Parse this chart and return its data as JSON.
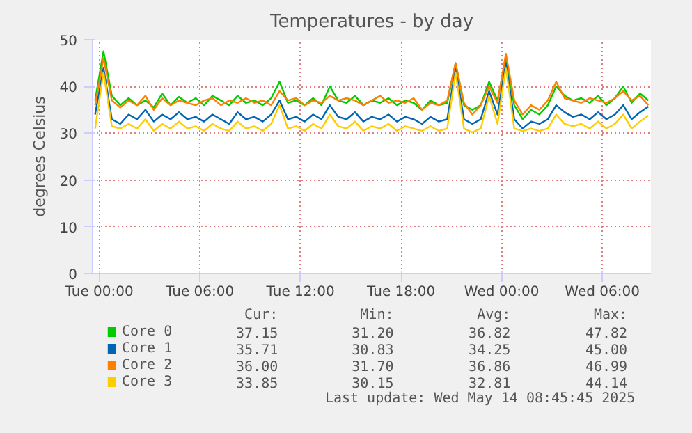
{
  "chart_data": {
    "type": "line",
    "title": "Temperatures - by day",
    "ylabel": "degrees Celsius",
    "x": [
      "2025-05-12T23:45",
      "2025-05-13T00:15",
      "2025-05-13T00:45",
      "2025-05-13T01:15",
      "2025-05-13T01:45",
      "2025-05-13T02:15",
      "2025-05-13T02:45",
      "2025-05-13T03:15",
      "2025-05-13T03:45",
      "2025-05-13T04:15",
      "2025-05-13T04:45",
      "2025-05-13T05:15",
      "2025-05-13T05:45",
      "2025-05-13T06:15",
      "2025-05-13T06:45",
      "2025-05-13T07:15",
      "2025-05-13T07:45",
      "2025-05-13T08:15",
      "2025-05-13T08:45",
      "2025-05-13T09:15",
      "2025-05-13T09:45",
      "2025-05-13T10:15",
      "2025-05-13T10:45",
      "2025-05-13T11:15",
      "2025-05-13T11:45",
      "2025-05-13T12:15",
      "2025-05-13T12:45",
      "2025-05-13T13:15",
      "2025-05-13T13:45",
      "2025-05-13T14:15",
      "2025-05-13T14:45",
      "2025-05-13T15:15",
      "2025-05-13T15:45",
      "2025-05-13T16:15",
      "2025-05-13T16:45",
      "2025-05-13T17:15",
      "2025-05-13T17:45",
      "2025-05-13T18:15",
      "2025-05-13T18:45",
      "2025-05-13T19:15",
      "2025-05-13T19:45",
      "2025-05-13T20:15",
      "2025-05-13T20:45",
      "2025-05-13T21:15",
      "2025-05-13T21:45",
      "2025-05-13T22:15",
      "2025-05-13T22:45",
      "2025-05-13T23:15",
      "2025-05-13T23:45",
      "2025-05-14T00:15",
      "2025-05-14T00:45",
      "2025-05-14T01:15",
      "2025-05-14T01:45",
      "2025-05-14T02:15",
      "2025-05-14T02:45",
      "2025-05-14T03:15",
      "2025-05-14T03:45",
      "2025-05-14T04:15",
      "2025-05-14T04:45",
      "2025-05-14T05:15",
      "2025-05-14T05:45",
      "2025-05-14T06:15",
      "2025-05-14T06:45",
      "2025-05-14T07:15",
      "2025-05-14T07:45",
      "2025-05-14T08:15",
      "2025-05-14T08:45"
    ],
    "series": [
      {
        "name": "Core 0",
        "color": "#00cc00",
        "values": [
          37,
          47.5,
          38,
          36,
          37.5,
          36,
          37,
          35.5,
          38.5,
          36,
          37.8,
          36.5,
          37.5,
          36,
          38,
          37,
          36,
          38,
          36.5,
          37,
          36,
          37.5,
          41,
          36.5,
          37,
          36,
          37.5,
          36,
          40,
          37,
          36.5,
          38,
          36,
          37,
          36.5,
          37.5,
          36,
          37,
          36.5,
          35,
          37,
          36,
          36.5,
          45,
          36,
          35,
          36,
          41,
          37,
          46,
          36,
          33,
          35,
          34,
          36,
          40,
          38,
          37,
          37.5,
          36.5,
          38,
          36,
          37.5,
          40,
          36.5,
          38.5,
          37
        ]
      },
      {
        "name": "Core 1",
        "color": "#0066b3",
        "values": [
          34,
          44,
          33,
          32,
          34,
          33,
          35,
          32.5,
          34,
          33,
          34.5,
          33,
          33.5,
          32.5,
          34,
          33,
          32,
          34.5,
          33,
          33.5,
          32.5,
          34,
          37,
          33,
          33.5,
          32.5,
          34,
          33,
          36,
          33.5,
          33,
          34.5,
          32.5,
          33.5,
          33,
          34,
          32.5,
          33.5,
          33,
          32,
          33.5,
          32.5,
          33,
          44,
          33,
          32,
          33,
          39,
          34,
          45,
          33,
          31,
          32.5,
          32,
          33,
          36,
          34.5,
          33.5,
          34,
          33,
          34.5,
          33,
          34,
          36,
          33,
          34.5,
          35.7
        ]
      },
      {
        "name": "Core 2",
        "color": "#ff8000",
        "values": [
          36,
          46,
          37,
          35.5,
          37,
          36,
          38,
          35,
          37.5,
          36,
          37,
          36.5,
          36,
          37,
          37.5,
          36,
          37,
          36.5,
          37.5,
          36.5,
          37,
          36,
          39,
          37,
          37.5,
          36,
          37,
          36.5,
          38,
          37,
          37.5,
          37,
          36,
          37,
          38,
          36.5,
          37,
          36.5,
          37.5,
          35,
          36.5,
          36,
          37,
          45,
          36.5,
          34,
          36,
          40,
          36.5,
          47,
          37,
          34,
          36,
          35,
          37,
          41,
          37.5,
          37,
          36.5,
          37.5,
          37,
          36.5,
          37.5,
          39,
          37,
          38,
          36
        ]
      },
      {
        "name": "Core 3",
        "color": "#ffcc00",
        "values": [
          31,
          43,
          31.5,
          31,
          32,
          31,
          33,
          30.5,
          32,
          31,
          32.5,
          31,
          31.5,
          30.5,
          32,
          31,
          30.5,
          32.5,
          31,
          31.5,
          30.5,
          32,
          36,
          31,
          31.5,
          30.5,
          32,
          31,
          34,
          31.5,
          31,
          32.5,
          30.5,
          31.5,
          31,
          32,
          30.5,
          31.5,
          31,
          30.5,
          31.5,
          30.5,
          31,
          43,
          31,
          30.2,
          31,
          38,
          32,
          44,
          31,
          30.5,
          31,
          30.5,
          31,
          34,
          32,
          31.5,
          32,
          31,
          32.5,
          31,
          32,
          34,
          31,
          32.5,
          33.8
        ]
      }
    ],
    "xlim": [
      "2025-05-12T23:36",
      "2025-05-14T08:54"
    ],
    "xticks": [
      {
        "value": "2025-05-13T00:00",
        "label": "Tue 00:00"
      },
      {
        "value": "2025-05-13T06:00",
        "label": "Tue 06:00"
      },
      {
        "value": "2025-05-13T12:00",
        "label": "Tue 12:00"
      },
      {
        "value": "2025-05-13T18:00",
        "label": "Tue 18:00"
      },
      {
        "value": "2025-05-14T00:00",
        "label": "Wed 00:00"
      },
      {
        "value": "2025-05-14T06:00",
        "label": "Wed 06:00"
      }
    ],
    "ylim": [
      0,
      50
    ],
    "yticks": [
      0,
      10,
      20,
      30,
      40,
      50
    ],
    "grid": true,
    "legend": "bottom",
    "marker": "none",
    "line_style": "solid",
    "annotations": [
      "Cur:",
      "Min:",
      "Avg:",
      "Max:",
      "37.15",
      "31.20",
      "36.82",
      "47.82",
      "35.71",
      "30.83",
      "34.25",
      "45.00",
      "36.00",
      "31.70",
      "36.86",
      "46.99",
      "33.85",
      "30.15",
      "32.81",
      "44.14",
      "Last update: Wed May 14 08:45:45 2025"
    ]
  }
}
